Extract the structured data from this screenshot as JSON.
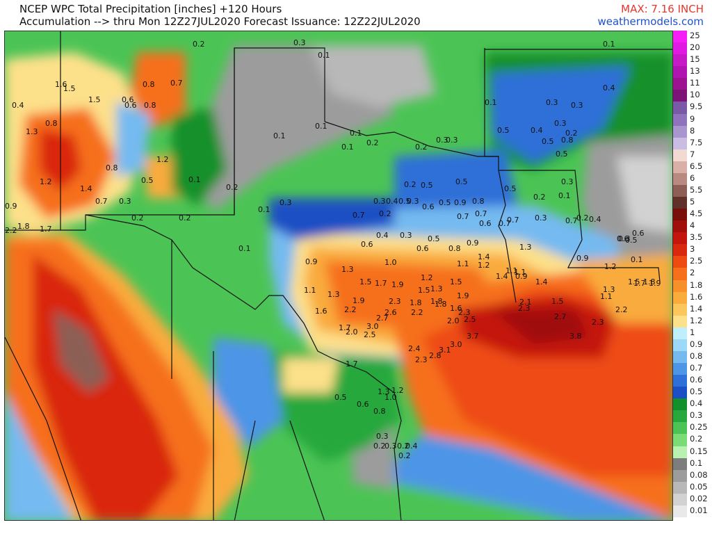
{
  "header": {
    "title_line1": "NCEP WPC Total Precipitation [inches] +120 Hours",
    "title_line2": "Accumulation --> thru Mon 12Z27JUL2020   Forecast Issuance: 12Z22JUL2020",
    "max_label": "MAX: 7.16 INCH",
    "brand": "weathermodels.com",
    "colors": {
      "max": "#e8342c",
      "brand": "#1f4fd6"
    }
  },
  "legend": [
    {
      "label": "25",
      "color": "#f51ef5"
    },
    {
      "label": "20",
      "color": "#e01ae0"
    },
    {
      "label": "15",
      "color": "#c71ac7"
    },
    {
      "label": "13",
      "color": "#b015b0"
    },
    {
      "label": "11",
      "color": "#9c1490"
    },
    {
      "label": "10",
      "color": "#7d1478"
    },
    {
      "label": "9.5",
      "color": "#7a5aa8"
    },
    {
      "label": "9",
      "color": "#8f74bd"
    },
    {
      "label": "8",
      "color": "#a896cf"
    },
    {
      "label": "7.5",
      "color": "#c9bde3"
    },
    {
      "label": "7",
      "color": "#f2d9d2"
    },
    {
      "label": "6.5",
      "color": "#d9b0a8"
    },
    {
      "label": "6",
      "color": "#b88a80"
    },
    {
      "label": "5.5",
      "color": "#8c5e55"
    },
    {
      "label": "5",
      "color": "#60302a"
    },
    {
      "label": "4.5",
      "color": "#7a0e0a"
    },
    {
      "label": "4",
      "color": "#a00f0b"
    },
    {
      "label": "3.5",
      "color": "#c4140e"
    },
    {
      "label": "3",
      "color": "#d9280e"
    },
    {
      "label": "2.5",
      "color": "#ee4b12"
    },
    {
      "label": "2",
      "color": "#f6701b"
    },
    {
      "label": "1.8",
      "color": "#f8902a"
    },
    {
      "label": "1.6",
      "color": "#f9ab3c"
    },
    {
      "label": "1.4",
      "color": "#fbc65b"
    },
    {
      "label": "1.2",
      "color": "#fde08a"
    },
    {
      "label": "1",
      "color": "#bfeffc"
    },
    {
      "label": "0.9",
      "color": "#9cd8f7"
    },
    {
      "label": "0.8",
      "color": "#74baf0"
    },
    {
      "label": "0.7",
      "color": "#4d95e6"
    },
    {
      "label": "0.6",
      "color": "#2f6fd8"
    },
    {
      "label": "0.5",
      "color": "#1d4fc4"
    },
    {
      "label": "0.4",
      "color": "#12902c"
    },
    {
      "label": "0.3",
      "color": "#26a83c"
    },
    {
      "label": "0.25",
      "color": "#4cc455"
    },
    {
      "label": "0.2",
      "color": "#7bdc77"
    },
    {
      "label": "0.15",
      "color": "#b9f2b0"
    },
    {
      "label": "0.1",
      "color": "#7d7d7d"
    },
    {
      "label": "0.08",
      "color": "#9c9c9c"
    },
    {
      "label": "0.05",
      "color": "#b8b8b8"
    },
    {
      "label": "0.02",
      "color": "#d2d2d2"
    },
    {
      "label": "0.01",
      "color": "#e9e9e9"
    }
  ],
  "map_labels": [
    {
      "t": "0.4"
    },
    {
      "t": "0.2"
    },
    {
      "t": "0.3"
    },
    {
      "t": "0.1"
    },
    {
      "t": "0.1"
    },
    {
      "t": "1.6"
    },
    {
      "t": "1.5"
    },
    {
      "t": "1.5"
    },
    {
      "t": "0.6"
    },
    {
      "t": "0.6"
    },
    {
      "t": "0.8"
    },
    {
      "t": "0.8"
    },
    {
      "t": "0.7"
    },
    {
      "t": "0.4"
    },
    {
      "t": "1.3"
    },
    {
      "t": "0.8"
    },
    {
      "t": "1.2"
    },
    {
      "t": "0.8"
    },
    {
      "t": "1.2"
    },
    {
      "t": "1.4"
    },
    {
      "t": "0.7"
    },
    {
      "t": "0.3"
    },
    {
      "t": "0.5"
    },
    {
      "t": "0.1"
    },
    {
      "t": "0.2"
    },
    {
      "t": "1.8"
    },
    {
      "t": "1.7"
    },
    {
      "t": "2.2"
    },
    {
      "t": "0.9"
    },
    {
      "t": "0.2"
    },
    {
      "t": "0.2"
    },
    {
      "t": "0.1"
    },
    {
      "t": "0.1"
    },
    {
      "t": "0.1"
    },
    {
      "t": "0.3"
    },
    {
      "t": "0.1"
    },
    {
      "t": "0.1"
    },
    {
      "t": "0.1"
    },
    {
      "t": "0.2"
    },
    {
      "t": "0.3"
    },
    {
      "t": "0.4"
    },
    {
      "t": "0.3"
    },
    {
      "t": "0.2"
    },
    {
      "t": "0.5"
    },
    {
      "t": "0.2"
    },
    {
      "t": "0.2"
    },
    {
      "t": "0.5"
    },
    {
      "t": "0.3"
    },
    {
      "t": "0.6"
    },
    {
      "t": "0.5"
    },
    {
      "t": "0.3"
    },
    {
      "t": "0.5"
    },
    {
      "t": "0.9"
    },
    {
      "t": "0.8"
    },
    {
      "t": "0.7"
    },
    {
      "t": "0.5"
    },
    {
      "t": "0.6"
    },
    {
      "t": "0.7"
    },
    {
      "t": "0.7"
    },
    {
      "t": "0.6"
    },
    {
      "t": "0.8"
    },
    {
      "t": "0.9"
    },
    {
      "t": "1.1"
    },
    {
      "t": "1.2"
    },
    {
      "t": "1.4"
    },
    {
      "t": "0.7"
    },
    {
      "t": "0.7"
    },
    {
      "t": "0.6"
    },
    {
      "t": "0.5"
    },
    {
      "t": "0.4"
    },
    {
      "t": "0.3"
    },
    {
      "t": "0.9"
    },
    {
      "t": "1.0"
    },
    {
      "t": "1.3"
    },
    {
      "t": "1.1"
    },
    {
      "t": "1.3"
    },
    {
      "t": "1.5"
    },
    {
      "t": "1.7"
    },
    {
      "t": "1.9"
    },
    {
      "t": "1.2"
    },
    {
      "t": "1.5"
    },
    {
      "t": "1.3"
    },
    {
      "t": "1.5"
    },
    {
      "t": "1.1"
    },
    {
      "t": "1.4"
    },
    {
      "t": "0.9"
    },
    {
      "t": "1.3"
    },
    {
      "t": "1.4"
    },
    {
      "t": "1.1"
    },
    {
      "t": "1.6"
    },
    {
      "t": "1.9"
    },
    {
      "t": "2.3"
    },
    {
      "t": "1.8"
    },
    {
      "t": "1.8"
    },
    {
      "t": "1.9"
    },
    {
      "t": "1.6"
    },
    {
      "t": "2.2"
    },
    {
      "t": "2.6"
    },
    {
      "t": "2.2"
    },
    {
      "t": "1.8"
    },
    {
      "t": "2.3"
    },
    {
      "t": "2.1"
    },
    {
      "t": "2.3"
    },
    {
      "t": "1.5"
    },
    {
      "t": "1.7"
    },
    {
      "t": "2.0"
    },
    {
      "t": "2.5"
    },
    {
      "t": "3.0"
    },
    {
      "t": "2.7"
    },
    {
      "t": "2.0"
    },
    {
      "t": "2.5"
    },
    {
      "t": "2.7"
    },
    {
      "t": "3.8"
    },
    {
      "t": "2.3"
    },
    {
      "t": "2.2"
    },
    {
      "t": "3.7"
    },
    {
      "t": "3.0"
    },
    {
      "t": "3.1"
    },
    {
      "t": "2.8"
    },
    {
      "t": "2.4"
    },
    {
      "t": "2.3"
    },
    {
      "t": "1.7"
    },
    {
      "t": "1.3"
    },
    {
      "t": "1.2"
    },
    {
      "t": "1.0"
    },
    {
      "t": "0.5"
    },
    {
      "t": "0.6"
    },
    {
      "t": "0.8"
    },
    {
      "t": "0.3"
    },
    {
      "t": "0.2"
    },
    {
      "t": "0.3"
    },
    {
      "t": "0.2"
    },
    {
      "t": "0.4"
    },
    {
      "t": "0.2"
    },
    {
      "t": "0.1"
    },
    {
      "t": "0.5"
    },
    {
      "t": "0.3"
    },
    {
      "t": "0.2"
    },
    {
      "t": "0.3"
    },
    {
      "t": "0.3"
    },
    {
      "t": "0.4"
    },
    {
      "t": "0.5"
    },
    {
      "t": "0.5"
    },
    {
      "t": "0.8"
    },
    {
      "t": "0.2"
    },
    {
      "t": "0.3"
    },
    {
      "t": "0.3"
    },
    {
      "t": "0.1"
    },
    {
      "t": "0.7"
    },
    {
      "t": "0.2"
    },
    {
      "t": "0.4"
    },
    {
      "t": "0.3"
    },
    {
      "t": "0.1"
    },
    {
      "t": "0.6"
    },
    {
      "t": "0.5"
    },
    {
      "t": "0.6"
    },
    {
      "t": "0.9"
    },
    {
      "t": "1.2"
    },
    {
      "t": "1.5"
    },
    {
      "t": "1.7"
    },
    {
      "t": "1.8"
    },
    {
      "t": "1.9"
    },
    {
      "t": "1.1"
    },
    {
      "t": "1.3"
    }
  ]
}
